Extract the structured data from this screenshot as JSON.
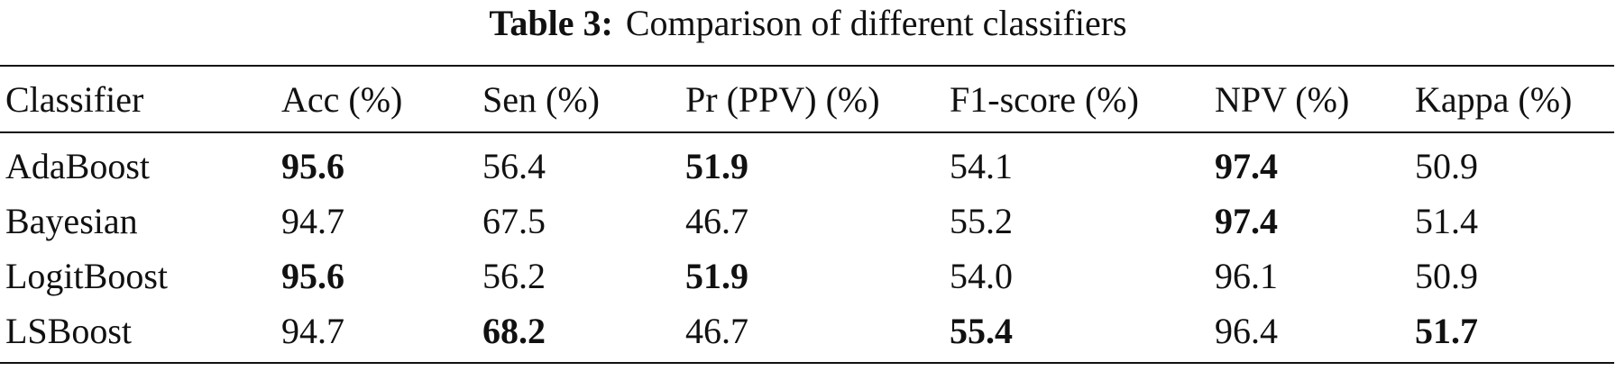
{
  "caption": {
    "label": "Table 3:",
    "text": "Comparison of different classifiers"
  },
  "table": {
    "headers": [
      "Classifier",
      "Acc (%)",
      "Sen (%)",
      "Pr (PPV) (%)",
      "F1-score (%)",
      "NPV (%)",
      "Kappa (%)"
    ],
    "rows": [
      {
        "cells": [
          "AdaBoost",
          "95.6",
          "56.4",
          "51.9",
          "54.1",
          "97.4",
          "50.9"
        ],
        "bold": [
          false,
          true,
          false,
          true,
          false,
          true,
          false
        ]
      },
      {
        "cells": [
          "Bayesian",
          "94.7",
          "67.5",
          "46.7",
          "55.2",
          "97.4",
          "51.4"
        ],
        "bold": [
          false,
          false,
          false,
          false,
          false,
          true,
          false
        ]
      },
      {
        "cells": [
          "LogitBoost",
          "95.6",
          "56.2",
          "51.9",
          "54.0",
          "96.1",
          "50.9"
        ],
        "bold": [
          false,
          true,
          false,
          true,
          false,
          false,
          false
        ]
      },
      {
        "cells": [
          "LSBoost",
          "94.7",
          "68.2",
          "46.7",
          "55.4",
          "96.4",
          "51.7"
        ],
        "bold": [
          false,
          false,
          true,
          false,
          true,
          false,
          true
        ]
      }
    ]
  }
}
